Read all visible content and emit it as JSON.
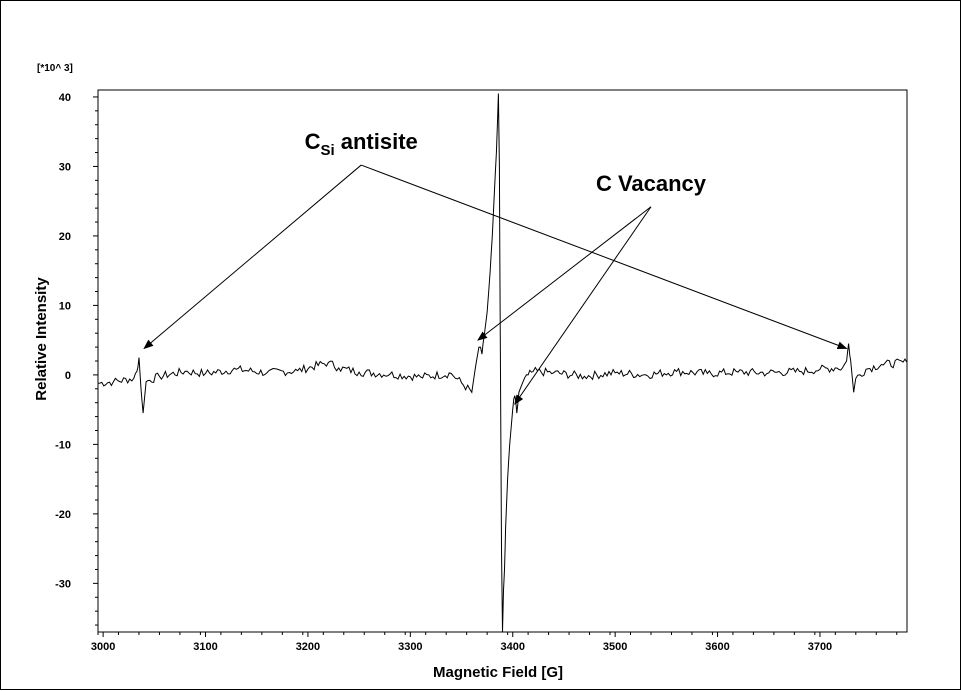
{
  "chart_data": {
    "type": "line",
    "title": "",
    "xlabel": "Magnetic Field [G]",
    "ylabel": "Relative Intensity",
    "y_multiplier_label": "[*10^ 3]",
    "xlim": [
      2995,
      3785
    ],
    "ylim": [
      -37,
      41
    ],
    "x_ticks": [
      3000,
      3100,
      3200,
      3300,
      3400,
      3500,
      3600,
      3700
    ],
    "y_ticks": [
      -30,
      -20,
      -10,
      0,
      10,
      20,
      30,
      40
    ],
    "grid": false,
    "series": [
      {
        "name": "",
        "x": [
          2995,
          3010,
          3030,
          3033,
          3035,
          3037,
          3039,
          3042,
          3055,
          3080,
          3100,
          3130,
          3160,
          3190,
          3220,
          3230,
          3250,
          3280,
          3310,
          3340,
          3360,
          3364,
          3367,
          3370,
          3372,
          3375,
          3378,
          3380,
          3382,
          3384,
          3385,
          3386,
          3387,
          3388,
          3389,
          3390,
          3391,
          3392,
          3393,
          3395,
          3397,
          3400,
          3402,
          3404,
          3406,
          3410,
          3415,
          3420,
          3440,
          3470,
          3500,
          3530,
          3560,
          3590,
          3620,
          3650,
          3680,
          3700,
          3715,
          3722,
          3726,
          3728,
          3730,
          3733,
          3735,
          3745,
          3760,
          3785
        ],
        "y": [
          -1.2,
          -1.0,
          -0.5,
          0.5,
          2.5,
          -2.0,
          -5.5,
          -1.0,
          -0.2,
          0.5,
          0.2,
          0.8,
          0.3,
          0.6,
          1.8,
          1.0,
          0.4,
          0.1,
          -0.3,
          0.2,
          -2.5,
          1.5,
          4.0,
          3.0,
          5.5,
          9.0,
          15.0,
          20.0,
          26.0,
          32.0,
          36.0,
          40.5,
          30.0,
          0.0,
          -25.0,
          -37.0,
          -31.0,
          -28.0,
          -22.0,
          -15.0,
          -10.0,
          -5.0,
          -3.0,
          -5.5,
          -2.5,
          -1.0,
          0.0,
          0.5,
          0.3,
          -0.2,
          0.3,
          0.0,
          0.5,
          0.2,
          0.4,
          0.3,
          0.5,
          0.8,
          1.0,
          1.0,
          2.0,
          4.5,
          2.0,
          -2.5,
          -0.5,
          0.8,
          1.5,
          1.8
        ]
      }
    ],
    "annotations": [
      {
        "text": "C",
        "subscript": "Si",
        "suffix": " antisite",
        "xy_text": [
          3252,
          32.5
        ],
        "arrows_to": [
          [
            3040,
            3.8
          ],
          [
            3726,
            3.8
          ]
        ]
      },
      {
        "text": "C Vacancy",
        "xy_text": [
          3535,
          26.5
        ],
        "arrows_to": [
          [
            3366,
            5.0
          ],
          [
            3402,
            -4.2
          ]
        ]
      }
    ]
  }
}
